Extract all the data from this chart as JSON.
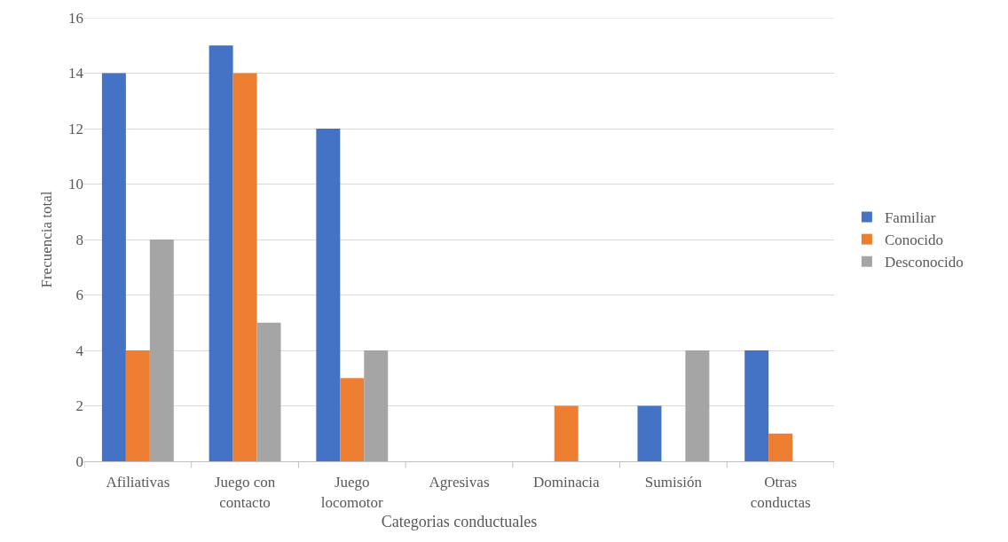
{
  "chart_data": {
    "type": "bar",
    "xlabel": "Categorias conductuales",
    "ylabel": "Frecuencia total",
    "categories": [
      "Afiliativas",
      "Juego con\ncontacto",
      "Juego\nlocomotor",
      "Agresivas",
      "Dominacia",
      "Sumisión",
      "Otras\nconductas"
    ],
    "series": [
      {
        "name": "Familiar",
        "color": "#4472c4",
        "values": [
          14,
          15,
          12,
          0,
          0,
          2,
          4
        ]
      },
      {
        "name": "Conocido",
        "color": "#ed7d31",
        "values": [
          4,
          14,
          3,
          0,
          2,
          0,
          1
        ]
      },
      {
        "name": "Desconocido",
        "color": "#a5a5a5",
        "values": [
          8,
          5,
          4,
          0,
          0,
          4,
          0
        ]
      }
    ],
    "ylim": [
      0,
      16
    ],
    "yticks": [
      0,
      2,
      4,
      6,
      8,
      10,
      12,
      14,
      16
    ],
    "grid": "y",
    "legend": "right"
  }
}
